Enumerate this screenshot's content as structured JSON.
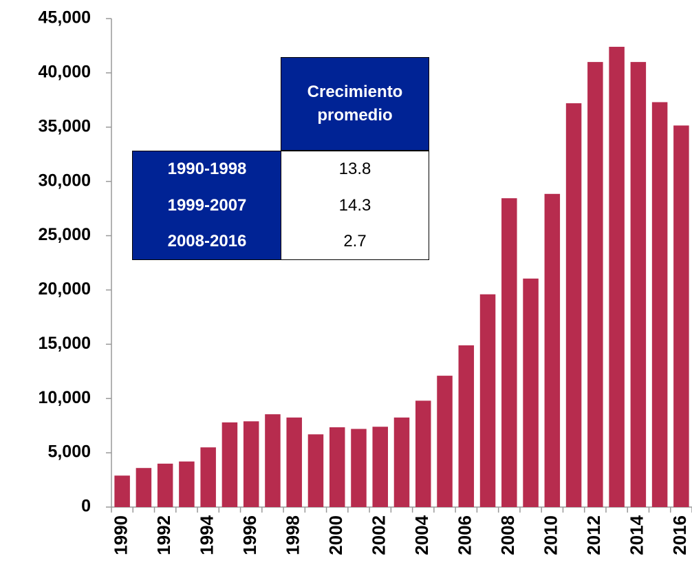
{
  "chart_data": {
    "type": "bar",
    "categories": [
      "1990",
      null,
      "1992",
      null,
      "1994",
      null,
      "1996",
      null,
      "1998",
      null,
      "2000",
      null,
      "2002",
      null,
      "2004",
      null,
      "2006",
      null,
      "2008",
      null,
      "2010",
      null,
      "2012",
      null,
      "2014",
      null,
      "2016"
    ],
    "values": [
      2900,
      3600,
      4000,
      4200,
      5500,
      7800,
      7900,
      8550,
      8250,
      6700,
      7350,
      7200,
      7400,
      8250,
      9800,
      12100,
      14900,
      19600,
      28450,
      21050,
      28850,
      37200,
      41000,
      42400,
      41000,
      37300,
      35150
    ],
    "color": "#b72c4e",
    "ylim": [
      0,
      45000
    ],
    "yticks": [
      0,
      {
        "value": 5000,
        "label": "5,000"
      },
      {
        "value": 10000,
        "label": "10,000"
      },
      {
        "value": 15000,
        "label": "15,000"
      },
      {
        "value": 20000,
        "label": "20,000"
      },
      {
        "value": 25000,
        "label": "25,000"
      },
      {
        "value": 30000,
        "label": "30,000"
      },
      {
        "value": 35000,
        "label": "35,000"
      },
      {
        "value": 40000,
        "label": "40,000"
      },
      {
        "value": 45000,
        "label": "45,000"
      }
    ],
    "grid": false
  },
  "table": {
    "header": "Crecimiento promedio",
    "rows": [
      [
        "1990-1998",
        13.8
      ],
      [
        "1999-2007",
        14.3
      ],
      [
        "2008-2016",
        2.7
      ]
    ]
  }
}
